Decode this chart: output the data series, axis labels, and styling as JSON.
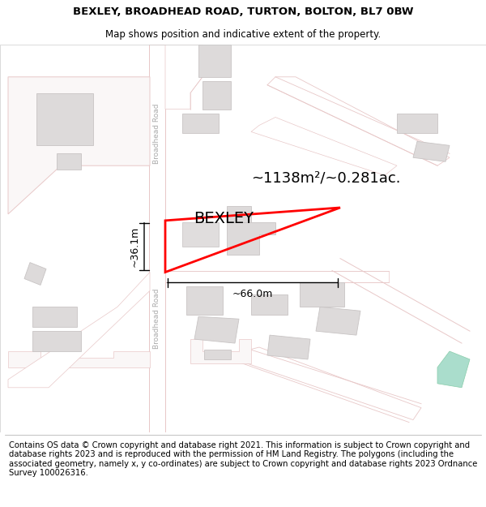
{
  "title": "BEXLEY, BROADHEAD ROAD, TURTON, BOLTON, BL7 0BW",
  "subtitle": "Map shows position and indicative extent of the property.",
  "footer": "Contains OS data © Crown copyright and database right 2021. This information is subject to Crown copyright and database rights 2023 and is reproduced with the permission of HM Land Registry. The polygons (including the associated geometry, namely x, y co-ordinates) are subject to Crown copyright and database rights 2023 Ordnance Survey 100026316.",
  "bg_color": "#ffffff",
  "map_bg": "#faf7f7",
  "road_color": "#e8c8c8",
  "road_fill": "#ffffff",
  "building_fill": "#dddada",
  "building_edge": "#c8c4c4",
  "plot_edge": "#ff0000",
  "plot_lw": 2.0,
  "area_text": "~1138m²/~0.281ac.",
  "label_text": "BEXLEY",
  "dim_h": "~36.1m",
  "dim_w": "~66.0m",
  "road_label": "Broadhead Road",
  "title_fontsize": 9.5,
  "subtitle_fontsize": 8.5,
  "footer_fontsize": 7.2,
  "area_fontsize": 13,
  "label_fontsize": 14,
  "dim_fontsize": 9,
  "road_label_color": "#aaaaaa",
  "green_color": "#aaddcc"
}
